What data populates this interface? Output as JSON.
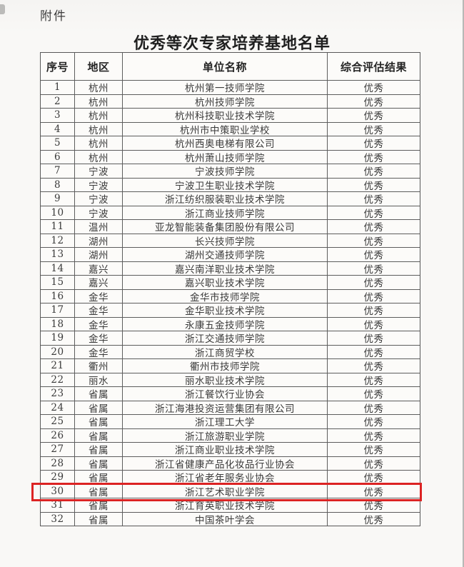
{
  "page": {
    "attachment_label": "附件",
    "title": "优秀等次专家培养基地名单"
  },
  "table": {
    "headers": [
      "序号",
      "地区",
      "单位名称",
      "综合评估结果"
    ],
    "highlighted_row_no": "30",
    "rows": [
      {
        "no": "1",
        "region": "杭州",
        "unit": "杭州第一技师学院",
        "result": "优秀"
      },
      {
        "no": "2",
        "region": "杭州",
        "unit": "杭州技师学院",
        "result": "优秀"
      },
      {
        "no": "3",
        "region": "杭州",
        "unit": "杭州科技职业技术学院",
        "result": "优秀"
      },
      {
        "no": "4",
        "region": "杭州",
        "unit": "杭州市中策职业学校",
        "result": "优秀"
      },
      {
        "no": "5",
        "region": "杭州",
        "unit": "杭州西奥电梯有限公司",
        "result": "优秀"
      },
      {
        "no": "6",
        "region": "杭州",
        "unit": "杭州萧山技师学院",
        "result": "优秀"
      },
      {
        "no": "7",
        "region": "宁波",
        "unit": "宁波技师学院",
        "result": "优秀"
      },
      {
        "no": "8",
        "region": "宁波",
        "unit": "宁波卫生职业技术学院",
        "result": "优秀"
      },
      {
        "no": "9",
        "region": "宁波",
        "unit": "浙江纺织服装职业技术学院",
        "result": "优秀"
      },
      {
        "no": "10",
        "region": "宁波",
        "unit": "浙江商业技师学院",
        "result": "优秀"
      },
      {
        "no": "11",
        "region": "温州",
        "unit": "亚龙智能装备集团股份有限公司",
        "result": "优秀"
      },
      {
        "no": "12",
        "region": "湖州",
        "unit": "长兴技师学院",
        "result": "优秀"
      },
      {
        "no": "13",
        "region": "湖州",
        "unit": "湖州交通技师学院",
        "result": "优秀"
      },
      {
        "no": "14",
        "region": "嘉兴",
        "unit": "嘉兴南洋职业技术学院",
        "result": "优秀"
      },
      {
        "no": "15",
        "region": "嘉兴",
        "unit": "嘉兴职业技术学院",
        "result": "优秀"
      },
      {
        "no": "16",
        "region": "金华",
        "unit": "金华市技师学院",
        "result": "优秀"
      },
      {
        "no": "17",
        "region": "金华",
        "unit": "金华职业技术学院",
        "result": "优秀"
      },
      {
        "no": "18",
        "region": "金华",
        "unit": "永康五金技师学院",
        "result": "优秀"
      },
      {
        "no": "19",
        "region": "金华",
        "unit": "浙江交通技师学院",
        "result": "优秀"
      },
      {
        "no": "20",
        "region": "金华",
        "unit": "浙江商贸学校",
        "result": "优秀"
      },
      {
        "no": "21",
        "region": "衢州",
        "unit": "衢州市技师学院",
        "result": "优秀"
      },
      {
        "no": "22",
        "region": "丽水",
        "unit": "丽水职业技术学院",
        "result": "优秀"
      },
      {
        "no": "23",
        "region": "省属",
        "unit": "浙江餐饮行业协会",
        "result": "优秀"
      },
      {
        "no": "24",
        "region": "省属",
        "unit": "浙江海港投资运营集团有限公司",
        "result": "优秀"
      },
      {
        "no": "25",
        "region": "省属",
        "unit": "浙江理工大学",
        "result": "优秀"
      },
      {
        "no": "26",
        "region": "省属",
        "unit": "浙江旅游职业学院",
        "result": "优秀"
      },
      {
        "no": "27",
        "region": "省属",
        "unit": "浙江商业职业技术学院",
        "result": "优秀"
      },
      {
        "no": "28",
        "region": "省属",
        "unit": "浙江省健康产品化妆品行业协会",
        "result": "优秀"
      },
      {
        "no": "29",
        "region": "省属",
        "unit": "浙江省老年服务业协会",
        "result": "优秀"
      },
      {
        "no": "30",
        "region": "省属",
        "unit": "浙江艺术职业学院",
        "result": "优秀"
      },
      {
        "no": "31",
        "region": "省属",
        "unit": "浙江育英职业技术学院",
        "result": "优秀"
      },
      {
        "no": "32",
        "region": "省属",
        "unit": "中国茶叶学会",
        "result": "优秀"
      }
    ]
  },
  "colors": {
    "highlight_border": "#dc2323"
  }
}
